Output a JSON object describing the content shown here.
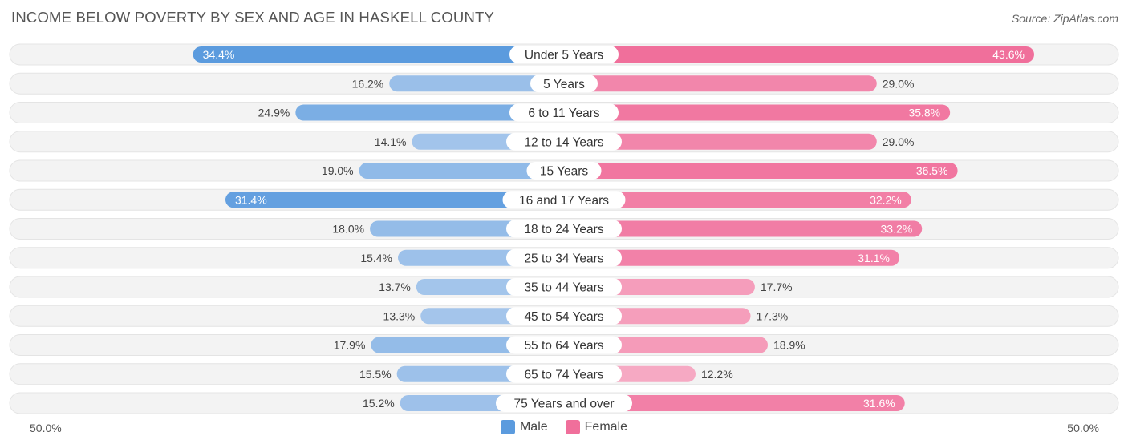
{
  "title": "INCOME BELOW POVERTY BY SEX AND AGE IN HASKELL COUNTY",
  "source": "Source: ZipAtlas.com",
  "axis": {
    "left_label": "50.0%",
    "right_label": "50.0%"
  },
  "legend": [
    {
      "name": "Male",
      "color": "#5b9bde"
    },
    {
      "name": "Female",
      "color": "#f06f9b"
    }
  ],
  "chart_data": {
    "type": "bar",
    "orientation": "diverging-horizontal",
    "title": "INCOME BELOW POVERTY BY SEX AND AGE IN HASKELL COUNTY",
    "xlim": [
      -50,
      50
    ],
    "unit": "%",
    "categories": [
      "Under 5 Years",
      "5 Years",
      "6 to 11 Years",
      "12 to 14 Years",
      "15 Years",
      "16 and 17 Years",
      "18 to 24 Years",
      "25 to 34 Years",
      "35 to 44 Years",
      "45 to 54 Years",
      "55 to 64 Years",
      "65 to 74 Years",
      "75 Years and over"
    ],
    "series": [
      {
        "name": "Male",
        "values": [
          34.4,
          16.2,
          24.9,
          14.1,
          19.0,
          31.4,
          18.0,
          15.4,
          13.7,
          13.3,
          17.9,
          15.5,
          15.2
        ]
      },
      {
        "name": "Female",
        "values": [
          43.6,
          29.0,
          35.8,
          29.0,
          36.5,
          32.2,
          33.2,
          31.1,
          17.7,
          17.3,
          18.9,
          12.2,
          31.6
        ]
      }
    ],
    "labels": {
      "male": [
        "34.4%",
        "16.2%",
        "24.9%",
        "14.1%",
        "19.0%",
        "31.4%",
        "18.0%",
        "15.4%",
        "13.7%",
        "13.3%",
        "17.9%",
        "15.5%",
        "15.2%"
      ],
      "female": [
        "43.6%",
        "29.0%",
        "35.8%",
        "29.0%",
        "36.5%",
        "32.2%",
        "33.2%",
        "31.1%",
        "17.7%",
        "17.3%",
        "18.9%",
        "12.2%",
        "31.6%"
      ]
    }
  }
}
